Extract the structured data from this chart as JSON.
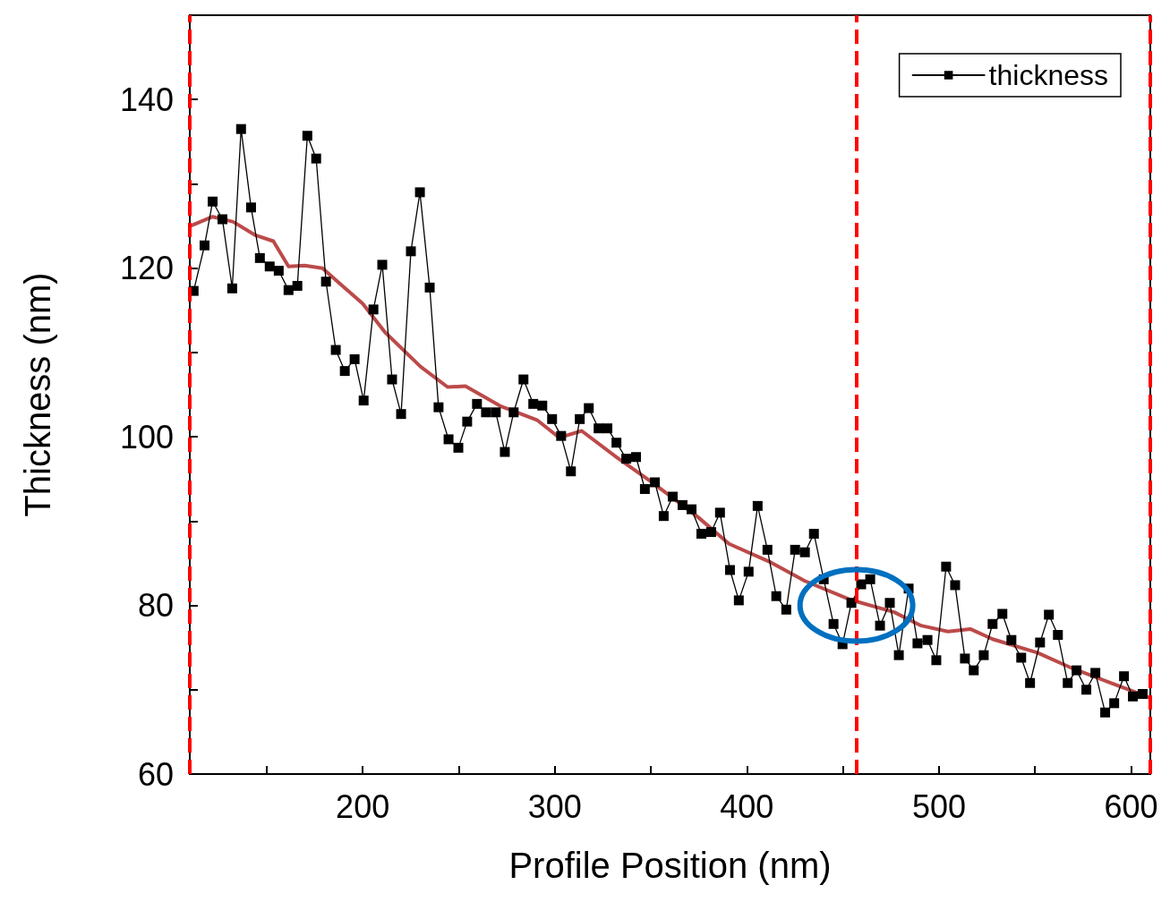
{
  "chart_data": {
    "type": "line",
    "xlabel": "Profile Position (nm)",
    "ylabel": "Thickness (nm)",
    "xlim": [
      110,
      610
    ],
    "ylim": [
      60,
      150
    ],
    "xticks": [
      {
        "value": 150,
        "label": null
      },
      200,
      {
        "value": 250,
        "label": null
      },
      300,
      {
        "value": 350,
        "label": null
      },
      400,
      {
        "value": 450,
        "label": null
      },
      500,
      {
        "value": 550,
        "label": null
      },
      600
    ],
    "yticks": [
      60,
      {
        "value": 70,
        "label": null
      },
      80,
      {
        "value": 90,
        "label": null
      },
      100,
      {
        "value": 110,
        "label": null
      },
      120,
      {
        "value": 130,
        "label": null
      },
      140
    ],
    "grid": false,
    "legend": "top right",
    "series": [
      {
        "name": "thickness",
        "color": "#000000",
        "marker": "square",
        "line_style": "solid",
        "x": [
          112,
          117.7,
          121.9,
          127,
          132.1,
          136.7,
          141.9,
          146.5,
          151.6,
          156.3,
          161.4,
          166,
          171.2,
          175.8,
          180.9,
          186,
          190.7,
          195.8,
          200.5,
          205.6,
          210.2,
          215.3,
          220,
          225.1,
          229.8,
          234.9,
          239.5,
          244.7,
          249.8,
          254.4,
          259.5,
          264.2,
          269.3,
          274,
          278.6,
          283.7,
          288.8,
          293.5,
          298.6,
          303.3,
          308.4,
          313,
          317.7,
          322.8,
          327.4,
          332.1,
          337.2,
          342.3,
          346.9,
          352.1,
          356.7,
          361.4,
          366.5,
          371.2,
          376.3,
          381.4,
          386,
          391.2,
          395.8,
          400.9,
          405.6,
          410.7,
          415.3,
          420.5,
          425.1,
          430.2,
          434.9,
          440,
          445.1,
          449.8,
          454.4,
          459.5,
          464.2,
          469.3,
          474.4,
          479.1,
          484.2,
          488.8,
          494,
          498.6,
          503.7,
          508.4,
          513.5,
          518.1,
          523.3,
          527.9,
          533,
          537.7,
          542.8,
          547.4,
          552.6,
          557.2,
          561.9,
          567,
          571.6,
          576.7,
          581.4,
          586.5,
          591.2,
          596.3,
          600.9,
          606
        ],
        "values": [
          117.3,
          122.7,
          127.9,
          125.8,
          117.6,
          136.5,
          127.2,
          121.2,
          120.2,
          119.7,
          117.4,
          117.9,
          135.7,
          133,
          118.4,
          110.3,
          107.8,
          109.2,
          104.3,
          115.1,
          120.4,
          106.8,
          102.7,
          122,
          129,
          117.7,
          103.5,
          99.7,
          98.7,
          101.8,
          103.9,
          102.9,
          102.9,
          98.2,
          102.9,
          106.8,
          103.9,
          103.7,
          102.1,
          100.1,
          95.9,
          102.1,
          103.4,
          101,
          101,
          99.3,
          97.4,
          97.6,
          93.8,
          94.6,
          90.6,
          92.9,
          91.9,
          91.4,
          88.5,
          88.7,
          91,
          84.2,
          80.6,
          84,
          91.8,
          86.6,
          81.1,
          79.5,
          86.6,
          86.3,
          88.5,
          83.1,
          77.8,
          75.4,
          80.3,
          82.5,
          83.1,
          77.6,
          80.3,
          74.1,
          82,
          75.5,
          75.9,
          73.5,
          84.6,
          82.4,
          73.7,
          72.3,
          74.1,
          77.8,
          79,
          75.9,
          73.8,
          70.8,
          75.6,
          78.9,
          76.5,
          70.8,
          72.3,
          70,
          72,
          67.3,
          68.4,
          71.6,
          69.2,
          69.5
        ]
      },
      {
        "color": "#b02a2a",
        "marker": "none",
        "line_style": "solid",
        "x": [
          110.2,
          121.9,
          132.6,
          144.2,
          153.5,
          161.4,
          169.8,
          179.1,
          188.4,
          200,
          211.6,
          230.2,
          244.2,
          253.5,
          272.1,
          290.7,
          302.3,
          314,
          332.6,
          351.2,
          374.4,
          390.7,
          411.6,
          430.2,
          453.5,
          476.7,
          490.7,
          504.7,
          516.3,
          527.9,
          551.2,
          569.8,
          588.4,
          609.3
        ],
        "values": [
          125,
          126.1,
          125.5,
          123.9,
          123.2,
          120.2,
          120.3,
          120,
          118.1,
          115.8,
          112.4,
          108.3,
          105.9,
          106,
          103.6,
          102,
          99.9,
          100.7,
          97.5,
          94.5,
          90.5,
          87.3,
          85.2,
          82.9,
          80.7,
          79.2,
          77.6,
          76.9,
          77.2,
          76,
          74.4,
          72.5,
          70.9,
          69.1
        ]
      }
    ],
    "ref_lines": [
      {
        "axis": "x",
        "value": 110,
        "color": "#ff0000",
        "line_style": "dashed"
      },
      {
        "axis": "x",
        "value": 457,
        "color": "#ff0000",
        "line_style": "dashed"
      },
      {
        "axis": "x",
        "value": 610,
        "color": "#ff0000",
        "line_style": "dashed"
      }
    ]
  }
}
